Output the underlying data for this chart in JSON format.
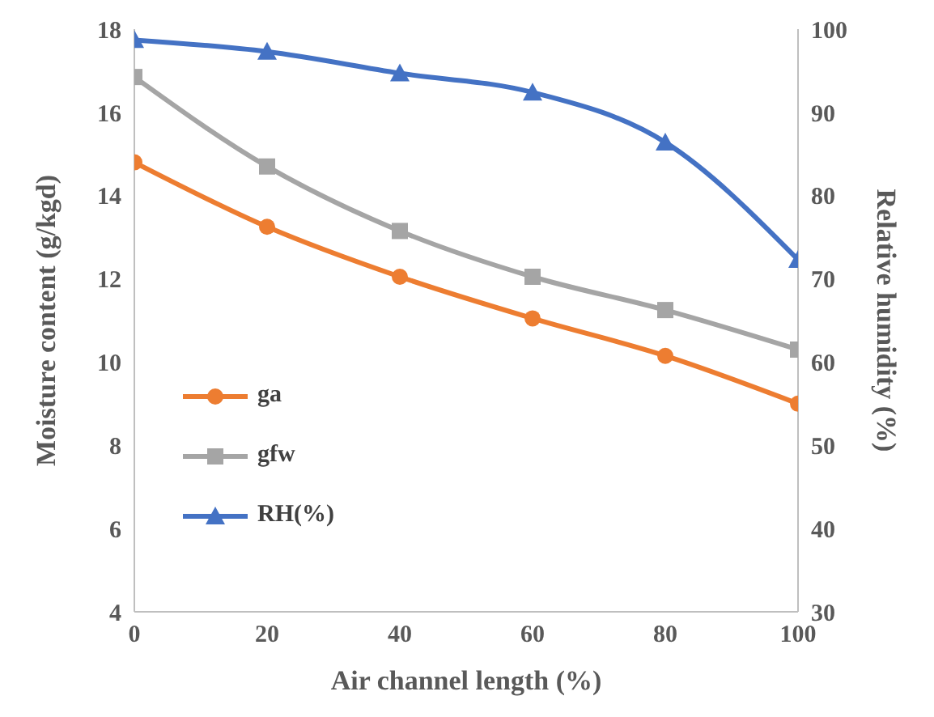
{
  "chart_data": {
    "type": "line",
    "xlabel": "Air channel length (%)",
    "ylabel": "Moisture content (g/kgd)",
    "y2label": "Relative humidity (%)",
    "x": [
      0,
      20,
      40,
      60,
      80,
      100
    ],
    "series": [
      {
        "name": "ga",
        "color": "#ed7d31",
        "marker": "circle",
        "values": [
          14.8,
          13.25,
          12.05,
          11.05,
          10.15,
          9.0
        ]
      },
      {
        "name": "gfw",
        "color": "#a5a5a5",
        "marker": "square",
        "values": [
          16.85,
          14.7,
          13.15,
          12.05,
          11.25,
          10.3
        ]
      },
      {
        "name": "RH(%)",
        "color": "#4472c4",
        "marker": "triangle",
        "axis": "y2",
        "values": [
          98.7,
          97.3,
          94.7,
          92.4,
          86.4,
          72.3
        ]
      }
    ],
    "xlim": [
      0,
      100
    ],
    "xticks": [
      0,
      20,
      40,
      60,
      80,
      100
    ],
    "ylim": [
      4,
      18
    ],
    "yticks": [
      4,
      6,
      8,
      10,
      12,
      14,
      16,
      18
    ],
    "y2lim": [
      30,
      100
    ],
    "y2ticks": [
      30,
      40,
      50,
      60,
      70,
      80,
      90,
      100
    ],
    "grid": false,
    "legend": "left"
  }
}
